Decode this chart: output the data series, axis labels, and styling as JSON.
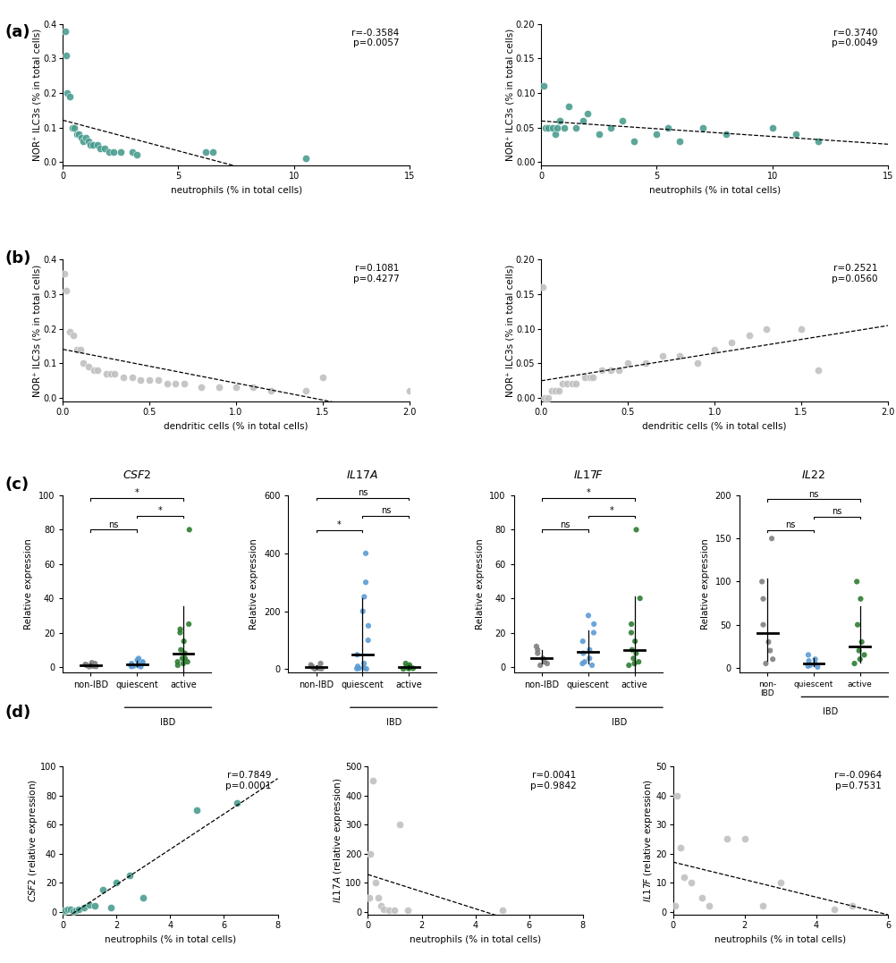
{
  "panel_a_left": {
    "x": [
      0.1,
      0.15,
      0.2,
      0.3,
      0.4,
      0.5,
      0.6,
      0.7,
      0.8,
      0.9,
      1.0,
      1.1,
      1.2,
      1.3,
      1.5,
      1.6,
      1.8,
      2.0,
      2.2,
      2.5,
      3.0,
      3.2,
      6.2,
      6.5,
      10.5
    ],
    "y": [
      0.38,
      0.31,
      0.2,
      0.19,
      0.1,
      0.1,
      0.08,
      0.08,
      0.07,
      0.06,
      0.07,
      0.06,
      0.05,
      0.05,
      0.05,
      0.04,
      0.04,
      0.03,
      0.03,
      0.03,
      0.03,
      0.02,
      0.03,
      0.03,
      0.01
    ],
    "r": "-0.3584",
    "p": "0.0057",
    "xlabel": "neutrophils (% in total cells)",
    "ylabel": "NOR⁺ ILC3s (% in total cells)",
    "xlim": [
      0,
      15
    ],
    "ylim": [
      -0.01,
      0.4
    ],
    "yticks": [
      0.0,
      0.1,
      0.2,
      0.3,
      0.4
    ],
    "xticks": [
      0,
      5,
      10,
      15
    ],
    "color": "#4a9d8f",
    "line_style": "--"
  },
  "panel_a_right": {
    "x": [
      0.1,
      0.2,
      0.3,
      0.5,
      0.6,
      0.7,
      0.8,
      1.0,
      1.2,
      1.5,
      1.8,
      2.0,
      2.5,
      3.0,
      3.5,
      4.0,
      5.0,
      5.5,
      6.0,
      7.0,
      8.0,
      10.0,
      11.0,
      12.0
    ],
    "y": [
      0.11,
      0.05,
      0.05,
      0.05,
      0.04,
      0.05,
      0.06,
      0.05,
      0.08,
      0.05,
      0.06,
      0.07,
      0.04,
      0.05,
      0.06,
      0.03,
      0.04,
      0.05,
      0.03,
      0.05,
      0.04,
      0.05,
      0.04,
      0.03
    ],
    "r": "0.3740",
    "p": "0.0049",
    "xlabel": "neutrophils (% in total cells)",
    "ylabel": "NOR⁺ ILC3s (% in total cells)",
    "xlim": [
      0,
      15
    ],
    "ylim": [
      -0.005,
      0.2
    ],
    "yticks": [
      0.0,
      0.05,
      0.1,
      0.15,
      0.2
    ],
    "xticks": [
      0,
      5,
      10,
      15
    ],
    "color": "#4a9d8f",
    "line_style": "--"
  },
  "panel_b_left": {
    "x": [
      0.01,
      0.02,
      0.04,
      0.06,
      0.08,
      0.1,
      0.12,
      0.15,
      0.18,
      0.2,
      0.25,
      0.28,
      0.3,
      0.35,
      0.4,
      0.45,
      0.5,
      0.55,
      0.6,
      0.65,
      0.7,
      0.8,
      0.9,
      1.0,
      1.1,
      1.2,
      1.4,
      1.5,
      2.0
    ],
    "y": [
      0.36,
      0.31,
      0.19,
      0.18,
      0.14,
      0.14,
      0.1,
      0.09,
      0.08,
      0.08,
      0.07,
      0.07,
      0.07,
      0.06,
      0.06,
      0.05,
      0.05,
      0.05,
      0.04,
      0.04,
      0.04,
      0.03,
      0.03,
      0.03,
      0.03,
      0.02,
      0.02,
      0.06,
      0.02
    ],
    "r": "0.1081",
    "p": "0.4277",
    "xlabel": "dendritic cells (% in total cells)",
    "ylabel": "NOR⁺ ILC3s (% in total cells)",
    "xlim": [
      0,
      2.0
    ],
    "ylim": [
      -0.01,
      0.4
    ],
    "yticks": [
      0.0,
      0.1,
      0.2,
      0.3,
      0.4
    ],
    "xticks": [
      0.0,
      0.5,
      1.0,
      1.5,
      2.0
    ],
    "color": "#c0c0c0",
    "line_style": "--"
  },
  "panel_b_right": {
    "x": [
      0.01,
      0.02,
      0.04,
      0.06,
      0.08,
      0.1,
      0.12,
      0.15,
      0.18,
      0.2,
      0.25,
      0.28,
      0.3,
      0.35,
      0.4,
      0.45,
      0.5,
      0.6,
      0.7,
      0.8,
      0.9,
      1.0,
      1.1,
      1.2,
      1.3,
      1.5,
      1.6
    ],
    "y": [
      0.16,
      0.0,
      0.0,
      0.01,
      0.01,
      0.01,
      0.02,
      0.02,
      0.02,
      0.02,
      0.03,
      0.03,
      0.03,
      0.04,
      0.04,
      0.04,
      0.05,
      0.05,
      0.06,
      0.06,
      0.05,
      0.07,
      0.08,
      0.09,
      0.1,
      0.1,
      0.04
    ],
    "r": "0.2521",
    "p": "0.0560",
    "xlabel": "dendritic cells (% in total cells)",
    "ylabel": "NOR⁺ ILC3s (% in total cells)",
    "xlim": [
      0,
      2.0
    ],
    "ylim": [
      -0.005,
      0.2
    ],
    "yticks": [
      0.0,
      0.05,
      0.1,
      0.15,
      0.2
    ],
    "xticks": [
      0.0,
      0.5,
      1.0,
      1.5,
      2.0
    ],
    "color": "#c0c0c0",
    "line_style": "--"
  },
  "panel_c": {
    "csf2_non": [
      0.2,
      0.3,
      0.5,
      0.8,
      1.0,
      1.2,
      1.5,
      2.0,
      2.5
    ],
    "csf2_qui": [
      0.2,
      0.3,
      0.5,
      0.8,
      1.0,
      1.5,
      2.0,
      2.5,
      3.0,
      4.0,
      5.0
    ],
    "csf2_act": [
      1.0,
      2.0,
      3.0,
      5.0,
      8.0,
      10.0,
      15.0,
      20.0,
      22.0,
      25.0,
      5.0,
      3.0,
      80.0
    ],
    "il17a_non": [
      1.0,
      2.0,
      3.0,
      5.0,
      8.0,
      10.0,
      15.0,
      20.0
    ],
    "il17a_qui": [
      1.0,
      2.0,
      3.0,
      5.0,
      10.0,
      20.0,
      50.0,
      100.0,
      150.0,
      200.0,
      250.0,
      300.0,
      400.0
    ],
    "il17a_act": [
      1.0,
      2.0,
      3.0,
      5.0,
      8.0,
      10.0,
      15.0,
      20.0
    ],
    "il17f_non": [
      1.0,
      2.0,
      3.0,
      5.0,
      8.0,
      10.0,
      12.0
    ],
    "il17f_qui": [
      1.0,
      2.0,
      3.0,
      5.0,
      8.0,
      10.0,
      15.0,
      20.0,
      25.0,
      30.0
    ],
    "il17f_act": [
      1.0,
      2.0,
      3.0,
      5.0,
      8.0,
      10.0,
      15.0,
      20.0,
      25.0,
      40.0,
      80.0
    ],
    "il22_non": [
      5.0,
      10.0,
      20.0,
      30.0,
      50.0,
      80.0,
      100.0,
      150.0
    ],
    "il22_qui": [
      1.0,
      2.0,
      3.0,
      5.0,
      8.0,
      10.0,
      15.0
    ],
    "il22_act": [
      5.0,
      10.0,
      15.0,
      20.0,
      30.0,
      50.0,
      80.0,
      100.0
    ],
    "colors": [
      "#808080",
      "#5b9bd5",
      "#2d7d32"
    ]
  },
  "panel_d_left": {
    "x": [
      0.05,
      0.1,
      0.2,
      0.3,
      0.4,
      0.5,
      0.6,
      0.8,
      1.0,
      1.2,
      1.5,
      1.8,
      2.0,
      2.5,
      3.0,
      5.0,
      6.5
    ],
    "y": [
      0.5,
      1.0,
      1.5,
      2.0,
      0.5,
      1.0,
      2.0,
      3.0,
      5.0,
      4.0,
      15.0,
      3.0,
      20.0,
      25.0,
      10.0,
      70.0,
      75.0
    ],
    "r": "0.7849",
    "p": "0.0001",
    "xlabel": "neutrophils (% in total cells)",
    "ylabel": "CSF2 (relative expression)",
    "xlim": [
      0,
      8
    ],
    "ylim": [
      -2,
      100
    ],
    "yticks": [
      0,
      20,
      40,
      60,
      80,
      100
    ],
    "xticks": [
      0,
      2,
      4,
      6,
      8
    ],
    "color": "#4a9d8f",
    "line_style": "--"
  },
  "panel_d_middle": {
    "x": [
      0.05,
      0.1,
      0.2,
      0.3,
      0.4,
      0.5,
      0.6,
      0.8,
      1.0,
      1.2,
      1.5,
      5.0
    ],
    "y": [
      50.0,
      200.0,
      450.0,
      100.0,
      50.0,
      20.0,
      10.0,
      5.0,
      5.0,
      300.0,
      5.0,
      5.0
    ],
    "r": "0.0041",
    "p": "0.9842",
    "xlabel": "neutrophils (% in total cells)",
    "ylabel": "IL17A (relative expression)",
    "xlim": [
      0,
      8
    ],
    "ylim": [
      -10,
      500
    ],
    "yticks": [
      0,
      100,
      200,
      300,
      400,
      500
    ],
    "xticks": [
      0,
      2,
      4,
      6,
      8
    ],
    "color": "#c0c0c0",
    "line_style": "--"
  },
  "panel_d_right": {
    "x": [
      0.05,
      0.1,
      0.2,
      0.3,
      0.5,
      0.8,
      1.0,
      1.5,
      2.0,
      2.5,
      3.0,
      4.5,
      5.0
    ],
    "y": [
      2.0,
      40.0,
      22.0,
      12.0,
      10.0,
      5.0,
      2.0,
      25.0,
      25.0,
      2.0,
      10.0,
      1.0,
      2.0
    ],
    "r": "-0.0964",
    "p": "0.7531",
    "xlabel": "neutrophils (% in total cells)",
    "ylabel": "IL17F (relative expression)",
    "xlim": [
      0,
      6
    ],
    "ylim": [
      -1,
      50
    ],
    "yticks": [
      0,
      10,
      20,
      30,
      40,
      50
    ],
    "xticks": [
      0,
      2,
      4,
      6
    ],
    "color": "#c0c0c0",
    "line_style": "--"
  },
  "background_color": "#ffffff"
}
